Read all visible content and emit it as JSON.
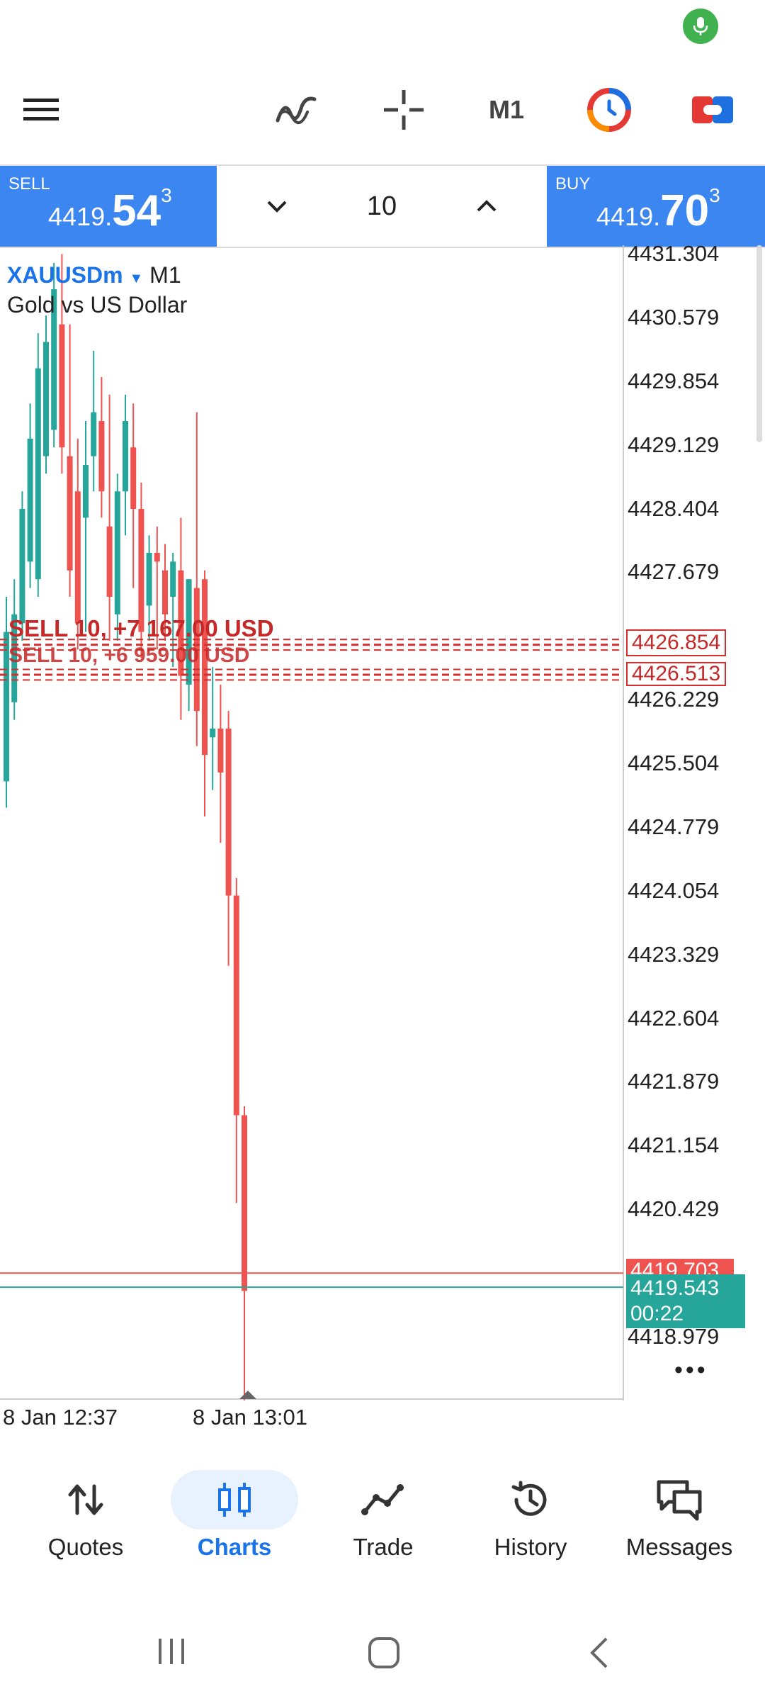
{
  "toolbar": {
    "timeframe": "M1"
  },
  "trade_panel": {
    "sell_label": "SELL",
    "sell_price_small": "4419.",
    "sell_price_big": "54",
    "sell_price_sup": "3",
    "buy_label": "BUY",
    "buy_price_small": "4419.",
    "buy_price_big": "70",
    "buy_price_sup": "3",
    "volume": "10"
  },
  "chart": {
    "symbol": "XAUUSDm",
    "timeframe": "M1",
    "description": "Gold vs US Dollar",
    "y_axis_labels": [
      "4431.304",
      "4430.579",
      "4429.854",
      "4429.129",
      "4428.404",
      "4427.679",
      "4426.229",
      "4425.504",
      "4424.779",
      "4424.054",
      "4423.329",
      "4422.604",
      "4421.879",
      "4421.154",
      "4420.429",
      "4418.979"
    ],
    "order_line_label_1": "SELL 10, +7 167.00 USD",
    "order_line_label_2": "SELL 10, +6 959.00 USD",
    "order_price_1": "4426.854",
    "order_price_2": "4426.513",
    "ask_price": "4419.703",
    "bid_price": "4419.543",
    "countdown": "00:22",
    "x_axis_labels": [
      "8 Jan 12:37",
      "8 Jan 13:01"
    ],
    "colors": {
      "bull": "#26a69a",
      "bear": "#ef5350",
      "order": "#d32f2f",
      "accent": "#1a73e8"
    }
  },
  "chart_data": {
    "type": "candlestick",
    "symbol": "XAUUSDm",
    "timeframe": "M1",
    "y_range": [
      4418.6,
      4431.4
    ],
    "candles": [
      {
        "o": 4425.3,
        "h": 4427.4,
        "l": 4425.0,
        "c": 4427.0
      },
      {
        "o": 4426.2,
        "h": 4427.6,
        "l": 4426.0,
        "c": 4427.2
      },
      {
        "o": 4427.1,
        "h": 4428.6,
        "l": 4426.9,
        "c": 4428.4
      },
      {
        "o": 4427.8,
        "h": 4429.6,
        "l": 4427.5,
        "c": 4429.2
      },
      {
        "o": 4427.6,
        "h": 4430.4,
        "l": 4427.4,
        "c": 4430.0
      },
      {
        "o": 4429.0,
        "h": 4430.6,
        "l": 4428.8,
        "c": 4430.3
      },
      {
        "o": 4429.3,
        "h": 4431.2,
        "l": 4429.1,
        "c": 4430.9
      },
      {
        "o": 4430.5,
        "h": 4431.3,
        "l": 4428.8,
        "c": 4429.1
      },
      {
        "o": 4429.0,
        "h": 4430.5,
        "l": 4427.4,
        "c": 4427.7
      },
      {
        "o": 4428.6,
        "h": 4429.2,
        "l": 4426.8,
        "c": 4427.1
      },
      {
        "o": 4428.3,
        "h": 4429.4,
        "l": 4427.0,
        "c": 4428.9
      },
      {
        "o": 4429.0,
        "h": 4430.2,
        "l": 4428.6,
        "c": 4429.5
      },
      {
        "o": 4429.4,
        "h": 4429.9,
        "l": 4428.3,
        "c": 4428.6
      },
      {
        "o": 4428.2,
        "h": 4429.7,
        "l": 4426.9,
        "c": 4427.4
      },
      {
        "o": 4427.2,
        "h": 4428.8,
        "l": 4426.9,
        "c": 4428.6
      },
      {
        "o": 4428.6,
        "h": 4429.7,
        "l": 4428.1,
        "c": 4429.4
      },
      {
        "o": 4429.1,
        "h": 4429.6,
        "l": 4427.5,
        "c": 4428.4
      },
      {
        "o": 4428.4,
        "h": 4428.7,
        "l": 4426.7,
        "c": 4427.0
      },
      {
        "o": 4427.3,
        "h": 4428.1,
        "l": 4426.9,
        "c": 4427.9
      },
      {
        "o": 4427.9,
        "h": 4428.2,
        "l": 4426.8,
        "c": 4427.8
      },
      {
        "o": 4427.7,
        "h": 4428.0,
        "l": 4426.9,
        "c": 4427.2
      },
      {
        "o": 4427.4,
        "h": 4427.9,
        "l": 4426.6,
        "c": 4427.8
      },
      {
        "o": 4427.7,
        "h": 4428.3,
        "l": 4426.0,
        "c": 4426.5
      },
      {
        "o": 4426.4,
        "h": 4427.6,
        "l": 4426.1,
        "c": 4427.6
      },
      {
        "o": 4427.5,
        "h": 4429.5,
        "l": 4425.7,
        "c": 4426.1
      },
      {
        "o": 4427.6,
        "h": 4427.7,
        "l": 4424.9,
        "c": 4425.6
      },
      {
        "o": 4425.8,
        "h": 4426.6,
        "l": 4425.2,
        "c": 4425.9
      },
      {
        "o": 4425.9,
        "h": 4426.4,
        "l": 4424.6,
        "c": 4425.4
      },
      {
        "o": 4425.9,
        "h": 4426.1,
        "l": 4423.2,
        "c": 4424.0
      },
      {
        "o": 4424.0,
        "h": 4424.2,
        "l": 4420.5,
        "c": 4421.5
      },
      {
        "o": 4421.5,
        "h": 4421.6,
        "l": 4417.8,
        "c": 4419.5
      }
    ],
    "order_lines": [
      4426.854,
      4426.513
    ],
    "bid": 4419.543,
    "ask": 4419.703
  },
  "nav": {
    "items": [
      {
        "label": "Quotes"
      },
      {
        "label": "Charts"
      },
      {
        "label": "Trade"
      },
      {
        "label": "History"
      },
      {
        "label": "Messages"
      }
    ]
  }
}
